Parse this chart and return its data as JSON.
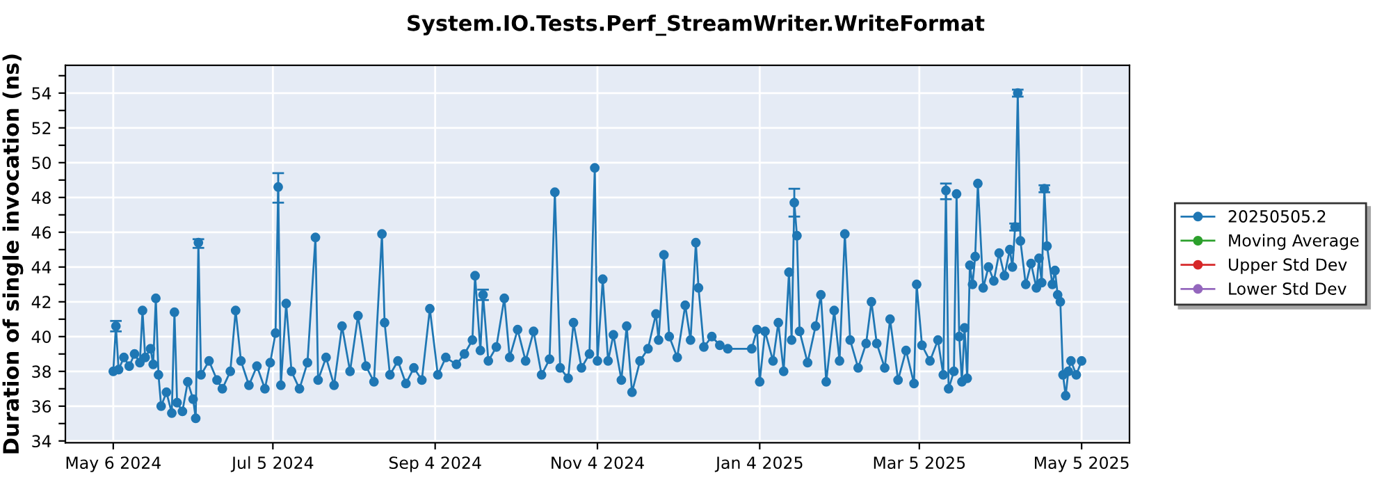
{
  "chart_data": {
    "type": "line",
    "title": "System.IO.Tests.Perf_StreamWriter.WriteFormat",
    "ylabel": "Duration of single invocation (ns)",
    "xlim": [
      "2024-04-18",
      "2025-05-23"
    ],
    "ylim": [
      33.9,
      55.6
    ],
    "xticks": [
      {
        "value": "2024-05-06",
        "label": "May 6 2024"
      },
      {
        "value": "2024-07-05",
        "label": "Jul 5 2024"
      },
      {
        "value": "2024-09-04",
        "label": "Sep 4 2024"
      },
      {
        "value": "2024-11-04",
        "label": "Nov 4 2024"
      },
      {
        "value": "2025-01-04",
        "label": "Jan 4 2025"
      },
      {
        "value": "2025-03-05",
        "label": "Mar 5 2025"
      },
      {
        "value": "2025-05-05",
        "label": "May 5 2025"
      }
    ],
    "yticks": [
      34,
      {
        "value": 35,
        "label": null
      },
      36,
      {
        "value": 37,
        "label": null
      },
      38,
      {
        "value": 39,
        "label": null
      },
      40,
      {
        "value": 41,
        "label": null
      },
      42,
      {
        "value": 43,
        "label": null
      },
      44,
      {
        "value": 45,
        "label": null
      },
      46,
      {
        "value": 47,
        "label": null
      },
      48,
      {
        "value": 49,
        "label": null
      },
      50,
      {
        "value": 51,
        "label": null
      },
      52,
      {
        "value": 53,
        "label": null
      },
      54,
      {
        "value": 55,
        "label": null
      }
    ],
    "grid": true,
    "legend": "right",
    "marker": "circle",
    "line_style": "solid",
    "series": [
      {
        "name": "20250505.2",
        "color": "#1f77b4",
        "x": [
          "2024-05-06",
          "2024-05-07",
          "2024-05-08",
          "2024-05-10",
          "2024-05-12",
          "2024-05-14",
          "2024-05-16",
          "2024-05-17",
          "2024-05-18",
          "2024-05-20",
          "2024-05-21",
          "2024-05-22",
          "2024-05-23",
          "2024-05-24",
          "2024-05-26",
          "2024-05-28",
          "2024-05-29",
          "2024-05-30",
          "2024-06-01",
          "2024-06-03",
          "2024-06-05",
          "2024-06-06",
          "2024-06-07",
          "2024-06-08",
          "2024-06-11",
          "2024-06-14",
          "2024-06-16",
          "2024-06-19",
          "2024-06-21",
          "2024-06-23",
          "2024-06-26",
          "2024-06-29",
          "2024-07-02",
          "2024-07-04",
          "2024-07-06",
          "2024-07-07",
          "2024-07-08",
          "2024-07-10",
          "2024-07-12",
          "2024-07-15",
          "2024-07-18",
          "2024-07-21",
          "2024-07-22",
          "2024-07-25",
          "2024-07-28",
          "2024-07-31",
          "2024-08-03",
          "2024-08-06",
          "2024-08-09",
          "2024-08-12",
          "2024-08-15",
          "2024-08-16",
          "2024-08-18",
          "2024-08-21",
          "2024-08-24",
          "2024-08-27",
          "2024-08-30",
          "2024-09-02",
          "2024-09-05",
          "2024-09-08",
          "2024-09-12",
          "2024-09-15",
          "2024-09-18",
          "2024-09-19",
          "2024-09-21",
          "2024-09-22",
          "2024-09-24",
          "2024-09-27",
          "2024-09-30",
          "2024-10-02",
          "2024-10-05",
          "2024-10-08",
          "2024-10-11",
          "2024-10-14",
          "2024-10-17",
          "2024-10-19",
          "2024-10-21",
          "2024-10-24",
          "2024-10-26",
          "2024-10-29",
          "2024-11-01",
          "2024-11-03",
          "2024-11-04",
          "2024-11-06",
          "2024-11-08",
          "2024-11-10",
          "2024-11-13",
          "2024-11-15",
          "2024-11-17",
          "2024-11-20",
          "2024-11-23",
          "2024-11-26",
          "2024-11-27",
          "2024-11-29",
          "2024-12-01",
          "2024-12-04",
          "2024-12-07",
          "2024-12-09",
          "2024-12-11",
          "2024-12-12",
          "2024-12-14",
          "2024-12-17",
          "2024-12-20",
          "2024-12-23",
          "2025-01-01",
          "2025-01-03",
          "2025-01-04",
          "2025-01-06",
          "2025-01-09",
          "2025-01-11",
          "2025-01-13",
          "2025-01-15",
          "2025-01-16",
          "2025-01-17",
          "2025-01-18",
          "2025-01-19",
          "2025-01-22",
          "2025-01-25",
          "2025-01-27",
          "2025-01-29",
          "2025-02-01",
          "2025-02-03",
          "2025-02-05",
          "2025-02-07",
          "2025-02-10",
          "2025-02-13",
          "2025-02-15",
          "2025-02-17",
          "2025-02-20",
          "2025-02-22",
          "2025-02-25",
          "2025-02-28",
          "2025-03-03",
          "2025-03-04",
          "2025-03-06",
          "2025-03-09",
          "2025-03-12",
          "2025-03-14",
          "2025-03-15",
          "2025-03-16",
          "2025-03-18",
          "2025-03-19",
          "2025-03-20",
          "2025-03-21",
          "2025-03-22",
          "2025-03-23",
          "2025-03-24",
          "2025-03-25",
          "2025-03-26",
          "2025-03-27",
          "2025-03-29",
          "2025-03-31",
          "2025-04-02",
          "2025-04-04",
          "2025-04-06",
          "2025-04-08",
          "2025-04-09",
          "2025-04-10",
          "2025-04-11",
          "2025-04-12",
          "2025-04-14",
          "2025-04-16",
          "2025-04-18",
          "2025-04-19",
          "2025-04-20",
          "2025-04-21",
          "2025-04-22",
          "2025-04-24",
          "2025-04-25",
          "2025-04-26",
          "2025-04-27",
          "2025-04-28",
          "2025-04-29",
          "2025-04-30",
          "2025-05-01",
          "2025-05-03",
          "2025-05-05"
        ],
        "values": [
          38.0,
          40.6,
          38.1,
          38.8,
          38.3,
          39.0,
          38.5,
          41.5,
          38.8,
          39.3,
          38.4,
          42.2,
          37.8,
          36.0,
          36.8,
          35.6,
          41.4,
          36.2,
          35.7,
          37.4,
          36.4,
          35.3,
          45.4,
          37.8,
          38.6,
          37.5,
          37.0,
          38.0,
          41.5,
          38.6,
          37.2,
          38.3,
          37.0,
          38.5,
          40.2,
          48.6,
          37.2,
          41.9,
          38.0,
          37.0,
          38.5,
          45.7,
          37.5,
          38.8,
          37.2,
          40.6,
          38.0,
          41.2,
          38.3,
          37.4,
          45.9,
          40.8,
          37.8,
          38.6,
          37.3,
          38.2,
          37.5,
          41.6,
          37.8,
          38.8,
          38.4,
          39.0,
          39.8,
          43.5,
          39.2,
          42.4,
          38.6,
          39.4,
          42.2,
          38.8,
          40.4,
          38.6,
          40.3,
          37.8,
          38.7,
          48.3,
          38.2,
          37.6,
          40.8,
          38.2,
          39.0,
          49.7,
          38.6,
          43.3,
          38.6,
          40.1,
          37.5,
          40.6,
          36.8,
          38.6,
          39.3,
          41.3,
          39.8,
          44.7,
          40.0,
          38.8,
          41.8,
          39.8,
          45.4,
          42.8,
          39.4,
          40.0,
          39.5,
          39.3,
          39.3,
          40.4,
          37.4,
          40.3,
          38.6,
          40.8,
          38.0,
          43.7,
          39.8,
          47.7,
          45.8,
          40.3,
          38.5,
          40.6,
          42.4,
          37.4,
          41.5,
          38.6,
          45.9,
          39.8,
          38.2,
          39.6,
          42.0,
          39.6,
          38.2,
          41.0,
          37.5,
          39.2,
          37.3,
          43.0,
          39.5,
          38.6,
          39.8,
          37.8,
          48.4,
          37.0,
          38.0,
          48.2,
          40.0,
          37.4,
          40.5,
          37.6,
          44.1,
          43.0,
          44.6,
          48.8,
          42.8,
          44.0,
          43.2,
          44.8,
          43.5,
          45.0,
          44.0,
          46.3,
          54.0,
          45.5,
          43.0,
          44.2,
          42.8,
          44.5,
          43.1,
          48.5,
          45.2,
          43.0,
          43.8,
          42.4,
          42.0,
          37.8,
          36.6,
          38.0,
          38.6,
          37.8,
          38.6
        ],
        "errors": [
          null,
          [
            40.3,
            40.9
          ],
          null,
          null,
          null,
          null,
          null,
          null,
          null,
          null,
          null,
          null,
          null,
          null,
          null,
          null,
          null,
          null,
          null,
          null,
          null,
          null,
          [
            45.1,
            45.6
          ],
          null,
          null,
          null,
          null,
          null,
          null,
          null,
          null,
          null,
          null,
          null,
          null,
          [
            47.7,
            49.4
          ],
          null,
          null,
          null,
          null,
          null,
          null,
          null,
          null,
          null,
          null,
          null,
          null,
          null,
          null,
          null,
          null,
          null,
          null,
          null,
          null,
          null,
          null,
          null,
          null,
          null,
          null,
          null,
          null,
          null,
          [
            42.1,
            42.7
          ],
          null,
          null,
          null,
          null,
          null,
          null,
          null,
          null,
          null,
          null,
          null,
          null,
          null,
          null,
          null,
          null,
          null,
          null,
          null,
          null,
          null,
          null,
          null,
          null,
          null,
          null,
          null,
          null,
          null,
          null,
          null,
          null,
          null,
          null,
          null,
          null,
          null,
          null,
          null,
          null,
          null,
          null,
          null,
          null,
          null,
          null,
          null,
          [
            46.9,
            48.5
          ],
          null,
          null,
          null,
          null,
          null,
          null,
          null,
          null,
          null,
          null,
          null,
          null,
          null,
          null,
          null,
          null,
          null,
          null,
          null,
          null,
          null,
          null,
          null,
          null,
          [
            47.9,
            48.8
          ],
          null,
          null,
          null,
          null,
          null,
          null,
          null,
          null,
          null,
          null,
          null,
          null,
          null,
          null,
          null,
          null,
          null,
          null,
          [
            46.1,
            46.5
          ],
          [
            53.8,
            54.2
          ],
          null,
          null,
          null,
          null,
          null,
          null,
          [
            48.3,
            48.7
          ],
          null,
          null,
          null,
          null,
          null,
          null,
          null,
          null,
          null,
          null,
          null
        ]
      },
      {
        "name": "Moving Average",
        "color": "#2ca02c"
      },
      {
        "name": "Upper Std Dev",
        "color": "#d62728"
      },
      {
        "name": "Lower Std Dev",
        "color": "#9467bd"
      }
    ]
  }
}
